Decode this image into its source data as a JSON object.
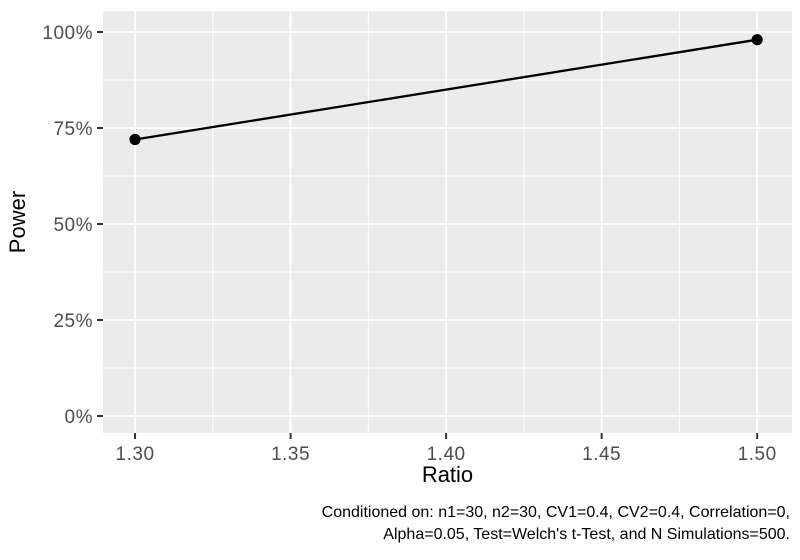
{
  "chart_data": {
    "type": "line",
    "title": "",
    "xlabel": "Ratio",
    "ylabel": "Power",
    "x": [
      1.3,
      1.5
    ],
    "series": [
      {
        "name": "Power",
        "values": [
          0.72,
          0.98
        ]
      }
    ],
    "xlim": [
      1.2897,
      1.5112
    ],
    "ylim": [
      -0.0443,
      1.0547
    ],
    "x_ticks": [
      {
        "value": 1.3,
        "label": "1.30"
      },
      {
        "value": 1.35,
        "label": "1.35"
      },
      {
        "value": 1.4,
        "label": "1.40"
      },
      {
        "value": 1.45,
        "label": "1.45"
      },
      {
        "value": 1.5,
        "label": "1.50"
      }
    ],
    "y_ticks": [
      {
        "value": 0.0,
        "label": "0%"
      },
      {
        "value": 0.25,
        "label": "25%"
      },
      {
        "value": 0.5,
        "label": "50%"
      },
      {
        "value": 0.75,
        "label": "75%"
      },
      {
        "value": 1.0,
        "label": "100%"
      }
    ],
    "x_minor_ticks": [
      1.325,
      1.375,
      1.425,
      1.475
    ],
    "y_minor_ticks": [
      0.125,
      0.375,
      0.625,
      0.875
    ],
    "grid": "on",
    "legend": "none",
    "caption_lines": [
      "Conditioned on: n1=30, n2=30, CV1=0.4, CV2=0.4, Correlation=0,",
      "Alpha=0.05, Test=Welch's t-Test, and N Simulations=500."
    ],
    "style": {
      "panel_bg": "#EBEBEB",
      "grid_color": "#FFFFFF",
      "line_color": "#000000",
      "point_color": "#000000",
      "tick_color": "#333333",
      "axis_text_color": "#4D4D4D",
      "title_color": "#000000",
      "background": "#FFFFFF"
    }
  }
}
